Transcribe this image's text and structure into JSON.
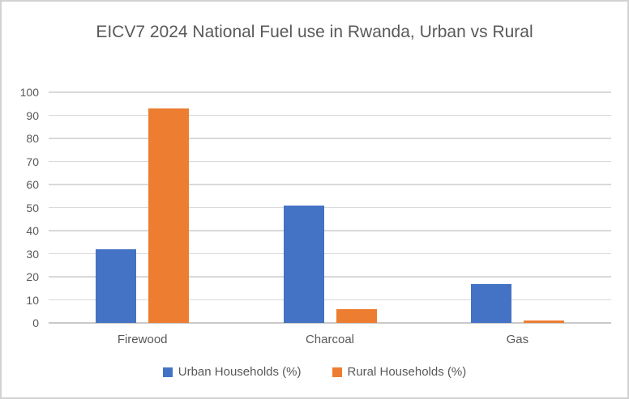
{
  "chart_data": {
    "type": "bar",
    "title": "EICV7 2024 National Fuel use in Rwanda, Urban vs Rural",
    "categories": [
      "Firewood",
      "Charcoal",
      "Gas"
    ],
    "series": [
      {
        "name": "Urban Households (%)",
        "color": "#4472C4",
        "values": [
          32,
          51,
          17
        ]
      },
      {
        "name": "Rural Households (%)",
        "color": "#ED7D31",
        "values": [
          93,
          6,
          1
        ]
      }
    ],
    "xlabel": "",
    "ylabel": "",
    "ylim": [
      0,
      100
    ],
    "yticks": [
      0,
      10,
      20,
      30,
      40,
      50,
      60,
      70,
      80,
      90,
      100
    ],
    "grid": "horizontal",
    "legend_position": "bottom"
  },
  "colors": {
    "title_text": "#595959",
    "axis_text": "#595959",
    "gridline": "#D9D9D9",
    "border": "#D2D2D2",
    "background": "#FFFFFF"
  }
}
